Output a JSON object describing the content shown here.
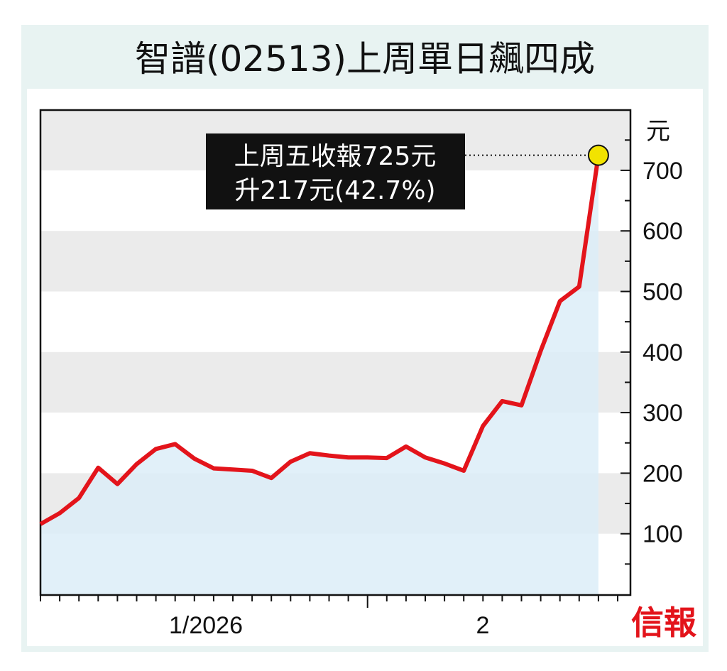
{
  "title": "智譜(02513)上周單日飆四成",
  "chart_data": {
    "type": "area",
    "title": "智譜(02513)上周單日飆四成",
    "ylabel": "元",
    "ylim": [
      0,
      800
    ],
    "yticks": [
      100,
      200,
      300,
      400,
      500,
      600,
      700
    ],
    "ytick_labels": [
      "100",
      "200",
      "300",
      "400",
      "500",
      "600",
      "700"
    ],
    "xtick_labels": [
      "1/2026",
      "2"
    ],
    "grid": "alternating horizontal bands",
    "line_color": "#e3141b",
    "fill_color": "#dcedf8",
    "values": [
      116,
      134,
      159,
      209,
      182,
      215,
      240,
      248,
      224,
      208,
      206,
      204,
      192,
      219,
      233,
      229,
      226,
      226,
      225,
      244,
      226,
      216,
      204,
      278,
      319,
      312,
      402,
      484,
      508,
      725
    ],
    "annotation": {
      "line1": "上周五收報725元",
      "line2": "升217元(42.7%)",
      "value": 725
    }
  },
  "logo": "信報"
}
